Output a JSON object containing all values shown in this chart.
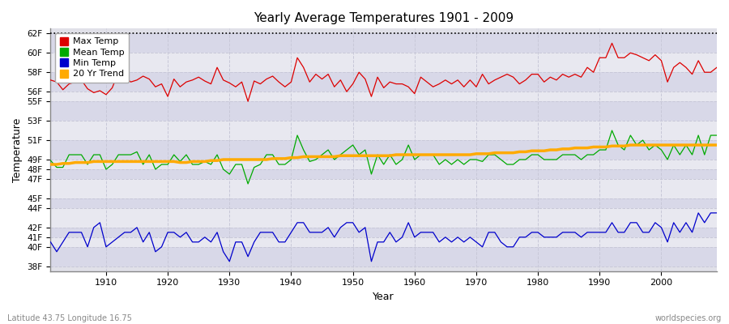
{
  "title": "Yearly Average Temperatures 1901 - 2009",
  "xlabel": "Year",
  "ylabel": "Temperature",
  "subtitle_left": "Latitude 43.75 Longitude 16.75",
  "subtitle_right": "worldspecies.org",
  "fig_bg_color": "#ffffff",
  "plot_bg_color": "#e0e0e8",
  "grid_color": "#c8c8d8",
  "band_colors": [
    "#d8d8e8",
    "#e8e8f0"
  ],
  "dotted_line_y": 62,
  "yticks": [
    38,
    40,
    41,
    42,
    44,
    45,
    47,
    48,
    49,
    51,
    53,
    55,
    56,
    58,
    60,
    62
  ],
  "ytick_labels": [
    "38F",
    "40F",
    "41F",
    "42F",
    "44F",
    "45F",
    "47F",
    "48F",
    "49F",
    "51F",
    "53F",
    "55F",
    "56F",
    "58F",
    "60F",
    "62F"
  ],
  "xticks": [
    1910,
    1920,
    1930,
    1940,
    1950,
    1960,
    1970,
    1980,
    1990,
    2000
  ],
  "xlim": [
    1901,
    2009
  ],
  "ylim": [
    37.5,
    62.5
  ],
  "legend_entries": [
    "Max Temp",
    "Mean Temp",
    "Min Temp",
    "20 Yr Trend"
  ],
  "legend_colors": [
    "#dd0000",
    "#00aa00",
    "#0000cc",
    "#ffaa00"
  ],
  "max_temp": [
    57.2,
    57.0,
    56.2,
    56.8,
    57.0,
    57.2,
    56.3,
    55.9,
    56.1,
    55.7,
    56.4,
    58.0,
    57.5,
    57.0,
    57.2,
    57.6,
    57.3,
    56.5,
    56.8,
    55.5,
    57.3,
    56.5,
    57.0,
    57.2,
    57.5,
    57.1,
    56.8,
    58.5,
    57.2,
    56.9,
    56.5,
    57.0,
    55.0,
    57.1,
    56.8,
    57.3,
    57.6,
    57.0,
    56.5,
    57.0,
    59.5,
    58.5,
    57.0,
    57.8,
    57.3,
    57.8,
    56.5,
    57.2,
    56.0,
    56.8,
    58.0,
    57.3,
    55.5,
    57.5,
    56.4,
    57.0,
    56.8,
    56.8,
    56.5,
    55.8,
    57.5,
    57.0,
    56.5,
    56.8,
    57.2,
    56.8,
    57.2,
    56.5,
    57.2,
    56.5,
    57.8,
    56.8,
    57.2,
    57.5,
    57.8,
    57.5,
    56.8,
    57.2,
    57.8,
    57.8,
    57.0,
    57.5,
    57.2,
    57.8,
    57.5,
    57.8,
    57.5,
    58.5,
    58.0,
    59.5,
    59.5,
    61.0,
    59.5,
    59.5,
    60.0,
    59.8,
    59.5,
    59.2,
    59.8,
    59.2,
    57.0,
    58.5,
    59.0,
    58.5,
    57.8,
    59.2,
    58.0,
    58.0,
    58.5
  ],
  "mean_temp": [
    48.9,
    48.2,
    48.2,
    49.5,
    49.5,
    49.5,
    48.5,
    49.5,
    49.5,
    48.0,
    48.5,
    49.5,
    49.5,
    49.5,
    49.8,
    48.5,
    49.5,
    48.0,
    48.5,
    48.5,
    49.5,
    48.8,
    49.5,
    48.5,
    48.5,
    48.8,
    48.5,
    49.5,
    48.0,
    47.5,
    48.5,
    48.5,
    46.5,
    48.2,
    48.5,
    49.5,
    49.5,
    48.5,
    48.5,
    49.0,
    51.5,
    50.0,
    48.8,
    49.0,
    49.5,
    50.0,
    49.0,
    49.5,
    50.0,
    50.5,
    49.5,
    50.0,
    47.5,
    49.5,
    48.5,
    49.5,
    48.5,
    49.0,
    50.5,
    49.0,
    49.5,
    49.5,
    49.5,
    48.5,
    49.0,
    48.5,
    49.0,
    48.5,
    49.0,
    49.0,
    48.8,
    49.5,
    49.5,
    49.0,
    48.5,
    48.5,
    49.0,
    49.0,
    49.5,
    49.5,
    49.0,
    49.0,
    49.0,
    49.5,
    49.5,
    49.5,
    49.0,
    49.5,
    49.5,
    50.0,
    50.0,
    52.0,
    50.5,
    50.0,
    51.5,
    50.5,
    51.0,
    50.0,
    50.5,
    50.0,
    49.0,
    50.5,
    49.5,
    50.5,
    49.5,
    51.5,
    49.5,
    51.5,
    51.5
  ],
  "min_temp": [
    40.5,
    39.5,
    40.5,
    41.5,
    41.5,
    41.5,
    40.0,
    42.0,
    42.5,
    40.0,
    40.5,
    41.0,
    41.5,
    41.5,
    42.0,
    40.5,
    41.5,
    39.5,
    40.0,
    41.5,
    41.5,
    41.0,
    41.5,
    40.5,
    40.5,
    41.0,
    40.5,
    41.5,
    39.5,
    38.5,
    40.5,
    40.5,
    39.0,
    40.5,
    41.5,
    41.5,
    41.5,
    40.5,
    40.5,
    41.5,
    42.5,
    42.5,
    41.5,
    41.5,
    41.5,
    42.0,
    41.0,
    42.0,
    42.5,
    42.5,
    41.5,
    42.0,
    38.5,
    40.5,
    40.5,
    41.5,
    40.5,
    41.0,
    42.5,
    41.0,
    41.5,
    41.5,
    41.5,
    40.5,
    41.0,
    40.5,
    41.0,
    40.5,
    41.0,
    40.5,
    40.0,
    41.5,
    41.5,
    40.5,
    40.0,
    40.0,
    41.0,
    41.0,
    41.5,
    41.5,
    41.0,
    41.0,
    41.0,
    41.5,
    41.5,
    41.5,
    41.0,
    41.5,
    41.5,
    41.5,
    41.5,
    42.5,
    41.5,
    41.5,
    42.5,
    42.5,
    41.5,
    41.5,
    42.5,
    42.0,
    40.5,
    42.5,
    41.5,
    42.5,
    41.5,
    43.5,
    42.5,
    43.5,
    43.5
  ],
  "trend": [
    48.5,
    48.5,
    48.6,
    48.6,
    48.7,
    48.7,
    48.7,
    48.8,
    48.8,
    48.8,
    48.8,
    48.8,
    48.8,
    48.8,
    48.8,
    48.8,
    48.8,
    48.8,
    48.8,
    48.8,
    48.8,
    48.7,
    48.7,
    48.8,
    48.8,
    48.8,
    48.9,
    48.9,
    49.0,
    49.0,
    49.0,
    49.0,
    49.0,
    49.0,
    49.0,
    49.0,
    49.1,
    49.1,
    49.1,
    49.2,
    49.2,
    49.3,
    49.3,
    49.3,
    49.3,
    49.3,
    49.3,
    49.4,
    49.4,
    49.4,
    49.4,
    49.4,
    49.4,
    49.4,
    49.4,
    49.4,
    49.5,
    49.5,
    49.5,
    49.5,
    49.5,
    49.5,
    49.5,
    49.5,
    49.5,
    49.5,
    49.5,
    49.5,
    49.5,
    49.6,
    49.6,
    49.6,
    49.7,
    49.7,
    49.7,
    49.7,
    49.8,
    49.8,
    49.9,
    49.9,
    49.9,
    50.0,
    50.0,
    50.1,
    50.1,
    50.2,
    50.2,
    50.2,
    50.3,
    50.3,
    50.3,
    50.4,
    50.4,
    50.4,
    50.5,
    50.5,
    50.5,
    50.5,
    50.5,
    50.5,
    50.5,
    50.5,
    50.5,
    50.5,
    50.5,
    50.5,
    50.5,
    50.5,
    50.5
  ]
}
